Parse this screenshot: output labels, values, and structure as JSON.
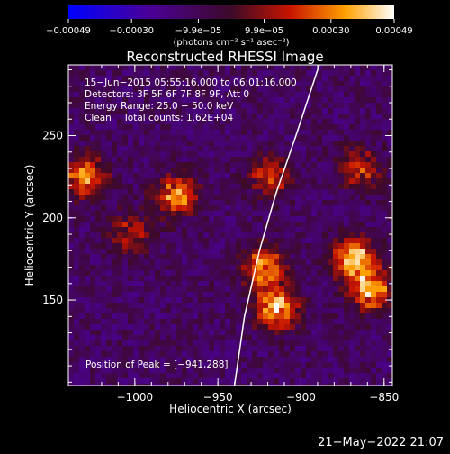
{
  "chart_data": {
    "type": "heatmap",
    "title": "Reconstructed RHESSI Image",
    "xlabel": "Heliocentric X (arcsec)",
    "ylabel": "Heliocentric Y (arcsec)",
    "xlim": [
      -1040,
      -845
    ],
    "ylim": [
      98,
      293
    ],
    "xticks": [
      -1000,
      -950,
      -900,
      -850
    ],
    "yticks": [
      150,
      200,
      250
    ],
    "xtick_labels": [
      "−1000",
      "−950",
      "−900",
      "−850"
    ],
    "ytick_labels": [
      "150",
      "200",
      "250"
    ],
    "colorbar": {
      "label": "(photons cm⁻² s⁻¹ asec⁻²)",
      "range": [
        -0.00049,
        0.00049
      ],
      "ticks": [
        -0.00049,
        -0.0003,
        -9.9e-05,
        9.9e-05,
        0.0003,
        0.00049
      ],
      "tick_labels": [
        "−0.00049",
        "−0.00030",
        "−9.9e−05",
        "9.9e−05",
        "0.00030",
        "0.00049"
      ]
    },
    "annotations": {
      "time": "15−Jun−2015 05:55:16.000 to 06:01:16.000",
      "detectors": "Detectors: 3F 5F 6F 7F 8F 9F, Att 0",
      "energy": "Energy Range: 25.0 − 50.0 keV",
      "clean": "Clean    Total counts: 1.62E+04",
      "peak": "Position of Peak = [−941,288]"
    },
    "limb_label": "",
    "hotspots": [
      {
        "x": -1030,
        "y": 225,
        "value": 0.0003
      },
      {
        "x": -975,
        "y": 213,
        "value": 0.00031
      },
      {
        "x": -922,
        "y": 170,
        "value": 0.0003
      },
      {
        "x": -915,
        "y": 145,
        "value": 0.0004
      },
      {
        "x": -868,
        "y": 175,
        "value": 0.00042
      },
      {
        "x": -858,
        "y": 155,
        "value": 0.00034
      },
      {
        "x": -918,
        "y": 225,
        "value": 0.0002
      },
      {
        "x": -1003,
        "y": 190,
        "value": 0.00015
      },
      {
        "x": -865,
        "y": 230,
        "value": 0.00018
      }
    ]
  },
  "footer": {
    "timestamp": "21−May−2022 21:07"
  }
}
